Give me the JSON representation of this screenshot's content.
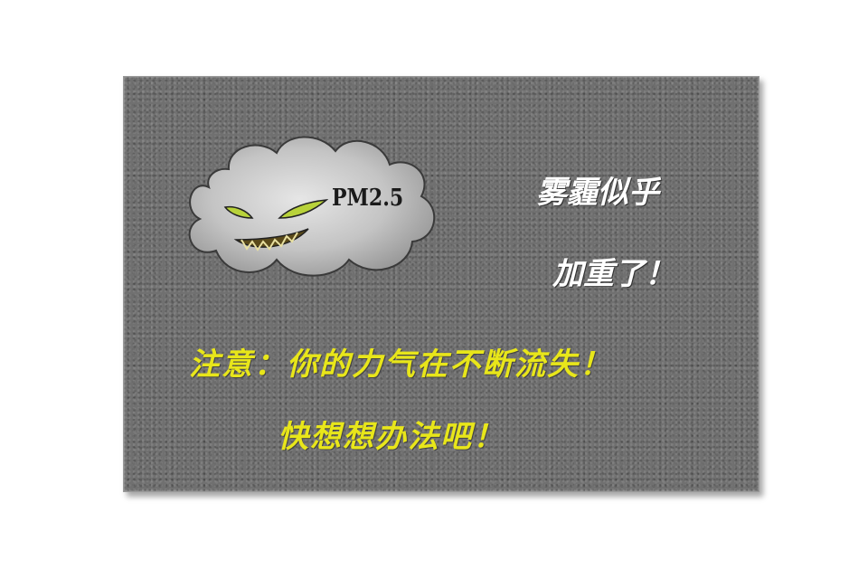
{
  "cloud": {
    "label": "PM2.5",
    "icon": "smog-cloud-monster-icon"
  },
  "headline": {
    "line1": "雾霾似乎",
    "line2": "加重了！"
  },
  "warning": {
    "line1": "注意：你的力气在不断流失！",
    "line2": "快想想办法吧！"
  },
  "colors": {
    "background": "#707070",
    "headline": "#ffffff",
    "warning": "#e8e61a",
    "eyes": "#b8d23a"
  }
}
